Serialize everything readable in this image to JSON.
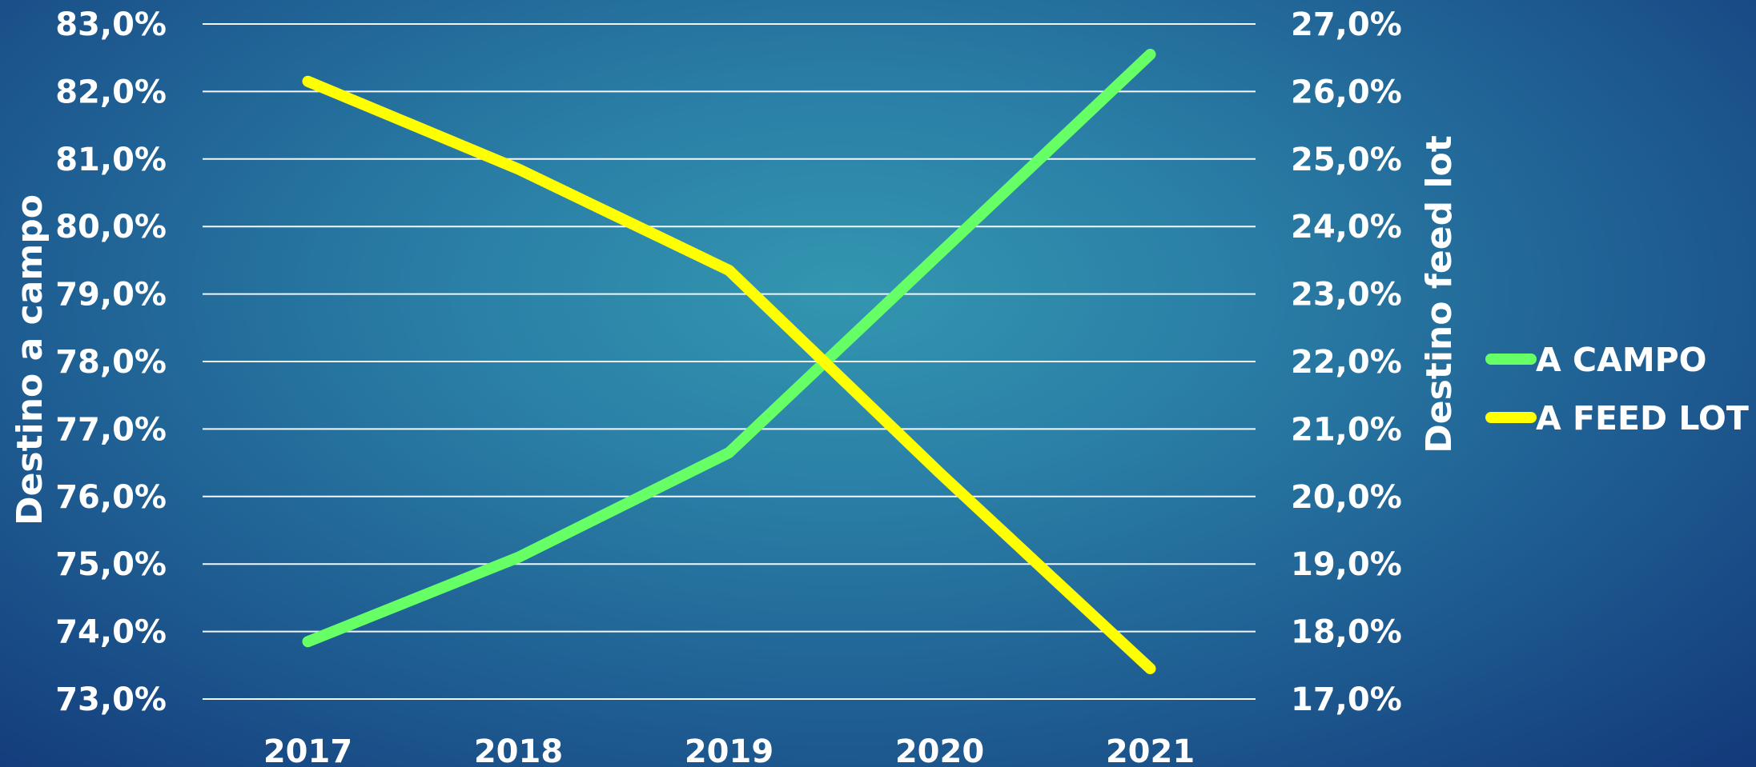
{
  "chart_data": {
    "type": "line",
    "title": "",
    "categories": [
      "2017",
      "2018",
      "2019",
      "2020",
      "2021"
    ],
    "y_left": {
      "label": "Destino a campo",
      "range": [
        73,
        83
      ],
      "ticks": [
        "73,0%",
        "74,0%",
        "75,0%",
        "76,0%",
        "77,0%",
        "78,0%",
        "79,0%",
        "80,0%",
        "81,0%",
        "82,0%",
        "83,0%"
      ]
    },
    "y_right": {
      "label": "Destino feed lot",
      "range": [
        17,
        27
      ],
      "ticks": [
        "17,0%",
        "18,0%",
        "19,0%",
        "20,0%",
        "21,0%",
        "22,0%",
        "23,0%",
        "24,0%",
        "25,0%",
        "26,0%",
        "27,0%"
      ]
    },
    "grid": true,
    "legend_position": "right",
    "series": [
      {
        "name": "A CAMPO",
        "axis": "left",
        "color": "#66ff66",
        "values": [
          73.85,
          75.1,
          76.65,
          79.6,
          82.55
        ]
      },
      {
        "name": "A FEED LOT",
        "axis": "right",
        "color": "#ffff00",
        "values": [
          26.15,
          24.85,
          23.35,
          20.35,
          17.45
        ]
      }
    ]
  }
}
